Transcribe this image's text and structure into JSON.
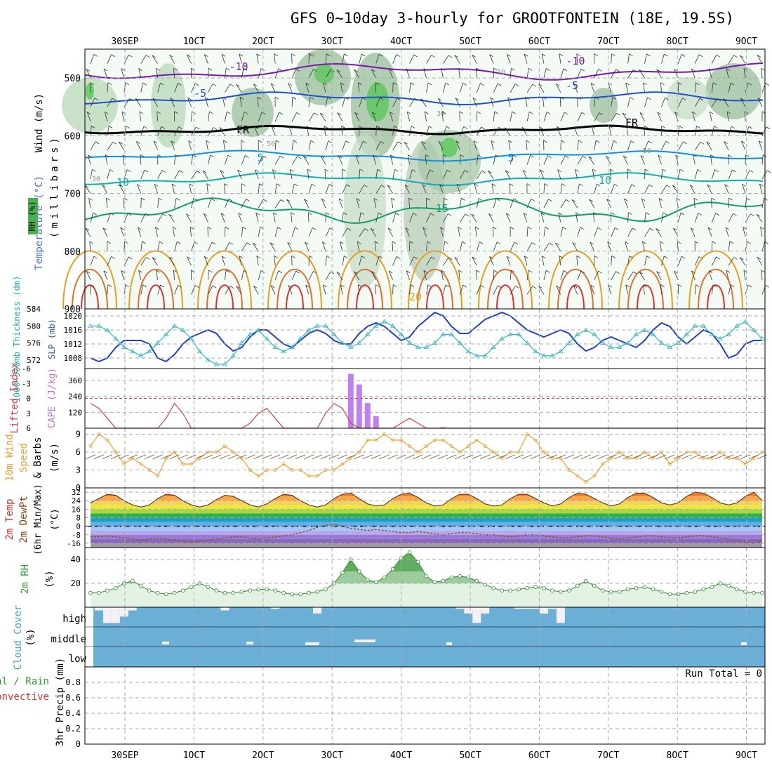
{
  "title": "GFS 0~10day 3-hourly for GROOTFONTEIN (18E, 19.5S)",
  "dates": [
    "30SEP",
    "1OCT",
    "2OCT",
    "3OCT",
    "4OCT",
    "5OCT",
    "6OCT",
    "7OCT",
    "8OCT",
    "9OCT"
  ],
  "colors": {
    "panel_border": "#000000",
    "grid": "#aaaaaa",
    "cloud_fill": "#6baed6",
    "rh_line": "#2e8b2e",
    "temp_purple": "#7b16b4",
    "temp_blue": "#2050d0",
    "temp_cyan": "#10b0b0",
    "temp_green": "#10a070",
    "temp_orange": "#e6a020",
    "temp_red": "#e03030",
    "wind10m": "#f0a030",
    "cape_bar": "#c080f0"
  },
  "panels": {
    "upper": {
      "labels": [
        "RH (%)",
        "Temperature (°C)",
        "Wind (m/s)"
      ],
      "axis_label": "(millibars)",
      "yticks": [
        "500",
        "600",
        "700",
        "800",
        "900"
      ],
      "contour_labels": [
        "-10",
        "-10",
        "-5",
        "-5",
        "FR",
        "FR",
        "5",
        "5",
        "10",
        "10",
        "15",
        "20",
        "30",
        "30",
        "30",
        "50",
        "50",
        "10"
      ]
    },
    "slp": {
      "left_label": "1000~500mb Thickness (dm)",
      "right_label": "SLP (mb)",
      "thick_ticks": [
        "584",
        "580",
        "576",
        "572"
      ],
      "slp_ticks": [
        "1020",
        "1016",
        "1012",
        "1008"
      ]
    },
    "cape": {
      "left_label": "Lifted Index",
      "right_label": "CAPE (J/kg)",
      "li_ticks": [
        "-6",
        "-3",
        "0",
        "3",
        "6"
      ],
      "cape_ticks": [
        "360",
        "240",
        "120"
      ]
    },
    "wind10m": {
      "labels": [
        "10m Wind",
        "Speed",
        "& Barbs"
      ],
      "unit": "(m/s)",
      "yticks": [
        "9",
        "6",
        "3",
        "0"
      ]
    },
    "temp2m": {
      "labels": [
        "2m Temp",
        "2m DewPt",
        "(6hr Min/Max)"
      ],
      "unit": "(°C)",
      "yticks": [
        "32",
        "24",
        "16",
        "8",
        "0",
        "-8",
        "-16"
      ]
    },
    "rh2m": {
      "label": "2m RH",
      "unit": "(%)",
      "yticks": [
        "40",
        "20"
      ]
    },
    "cloud": {
      "label": "Cloud Cover",
      "unit": "(%)",
      "levels": [
        "high",
        "middle",
        "low"
      ]
    },
    "precip": {
      "left_labels": [
        "Total / Rain",
        "Convective"
      ],
      "axis_label": "3hr Precip (mm)",
      "yticks": [
        "0.8",
        "0.6",
        "0.4",
        "0.2",
        "0"
      ],
      "run_total": "Run Total = 0"
    }
  },
  "chart_data": [
    {
      "type": "line",
      "name": "slp_thickness",
      "x_unit": "3-hourly steps (0-80)",
      "series": [
        {
          "name": "SLP (mb)",
          "values": [
            1008,
            1007,
            1008,
            1011,
            1013,
            1013,
            1013,
            1012,
            1008,
            1007,
            1009,
            1012,
            1014,
            1015,
            1016,
            1015,
            1012,
            1010,
            1011,
            1014,
            1016,
            1016,
            1014,
            1012,
            1011,
            1013,
            1015,
            1016,
            1015,
            1013,
            1012,
            1012,
            1015,
            1017,
            1018,
            1017,
            1015,
            1013,
            1014,
            1017,
            1019,
            1021,
            1020,
            1017,
            1015,
            1015,
            1017,
            1019,
            1020,
            1021,
            1020,
            1018,
            1016,
            1015,
            1014,
            1015,
            1016,
            1015,
            1012,
            1010,
            1011,
            1013,
            1014,
            1013,
            1012,
            1011,
            1013,
            1016,
            1018,
            1017,
            1014,
            1012,
            1014,
            1016,
            1015,
            1012,
            1008,
            1009,
            1012,
            1013,
            1013
          ]
        },
        {
          "name": "1000~500mb Thickness (dm)",
          "values": [
            580,
            580,
            579,
            577,
            575,
            574,
            573,
            574,
            576,
            578,
            580,
            579,
            577,
            574,
            572,
            571,
            571,
            573,
            576,
            578,
            579,
            577,
            575,
            574,
            575,
            577,
            579,
            580,
            580,
            578,
            576,
            575,
            576,
            578,
            580,
            581,
            580,
            578,
            576,
            575,
            575,
            576,
            578,
            578,
            576,
            574,
            573,
            573,
            575,
            577,
            578,
            578,
            576,
            574,
            573,
            573,
            574,
            576,
            578,
            579,
            578,
            576,
            575,
            575,
            576,
            578,
            579,
            578,
            576,
            575,
            576,
            578,
            580,
            580,
            578,
            577,
            578,
            580,
            581,
            579,
            577
          ]
        }
      ]
    },
    {
      "type": "bar",
      "name": "cape",
      "x_unit": "3-hourly steps",
      "bars": [
        {
          "x": 31,
          "value": 410
        },
        {
          "x": 32,
          "value": 330
        },
        {
          "x": 33,
          "value": 190
        },
        {
          "x": 34,
          "value": 90
        },
        {
          "x": 42,
          "value": 8
        }
      ],
      "lifted_index": [
        1,
        2,
        4,
        6,
        6,
        6,
        6,
        6,
        6,
        4,
        1,
        3,
        6,
        6,
        6,
        6,
        6,
        6,
        6,
        5,
        3,
        2,
        4,
        6,
        6,
        6,
        6,
        6,
        3,
        1,
        2,
        5,
        6,
        6,
        6,
        6,
        6,
        5,
        4,
        5,
        6,
        6,
        6,
        6,
        6,
        6,
        6,
        6,
        6,
        6,
        6,
        6,
        6,
        6,
        6,
        6,
        6,
        6,
        6,
        6,
        6,
        6,
        6,
        6,
        6,
        6,
        6,
        6,
        6,
        6,
        6,
        6,
        6,
        6,
        6,
        6,
        6,
        6,
        6,
        6,
        6
      ],
      "ylim_li": [
        6,
        -6
      ],
      "ylim_cape": [
        0,
        450
      ]
    },
    {
      "type": "line",
      "name": "wind10m_speed",
      "values": [
        7,
        9,
        8,
        6,
        4,
        5,
        4,
        3,
        2,
        5,
        6,
        4,
        4,
        5,
        6,
        6,
        7,
        6,
        5,
        3,
        2,
        3,
        3,
        4,
        3,
        3,
        2,
        2,
        3,
        3,
        4,
        5,
        6,
        8,
        8,
        9,
        8,
        8,
        7,
        6,
        7,
        8,
        8,
        7,
        6,
        7,
        8,
        7,
        6,
        5,
        6,
        6,
        9,
        8,
        6,
        5,
        5,
        3,
        2,
        1,
        2,
        4,
        5,
        6,
        5,
        5,
        6,
        5,
        6,
        4,
        5,
        6,
        6,
        5,
        5,
        6,
        5,
        5,
        4,
        5,
        6
      ],
      "ylim": [
        0,
        10
      ]
    },
    {
      "type": "area",
      "name": "temp2m",
      "temp": [
        22,
        26,
        30,
        29,
        24,
        20,
        18,
        20,
        26,
        30,
        29,
        24,
        20,
        18,
        20,
        25,
        29,
        28,
        24,
        20,
        18,
        21,
        26,
        30,
        29,
        24,
        20,
        18,
        20,
        26,
        30,
        31,
        26,
        21,
        19,
        20,
        26,
        30,
        31,
        27,
        22,
        19,
        20,
        26,
        30,
        30,
        26,
        21,
        19,
        20,
        26,
        30,
        30,
        26,
        22,
        19,
        21,
        27,
        31,
        30,
        26,
        22,
        19,
        21,
        27,
        31,
        31,
        27,
        22,
        20,
        22,
        28,
        32,
        31,
        27,
        22,
        20,
        22,
        28,
        32,
        24
      ],
      "dewpt": [
        -10,
        -10,
        -9,
        -10,
        -11,
        -12,
        -13,
        -12,
        -11,
        -12,
        -13,
        -14,
        -15,
        -14,
        -13,
        -12,
        -11,
        -10,
        -10,
        -11,
        -12,
        -11,
        -10,
        -9,
        -8,
        -6,
        -4,
        -1,
        1,
        2,
        0,
        -2,
        -3,
        -4,
        -3,
        -4,
        -5,
        -6,
        -6,
        -5,
        -6,
        -7,
        -8,
        -7,
        -6,
        -6,
        -7,
        -8,
        -8,
        -9,
        -10,
        -9,
        -8,
        -8,
        -9,
        -10,
        -11,
        -11,
        -10,
        -9,
        -9,
        -10,
        -11,
        -12,
        -11,
        -10,
        -9,
        -9,
        -10,
        -11,
        -11,
        -10,
        -9,
        -9,
        -10,
        -11,
        -12,
        -13,
        -15,
        -16,
        -14
      ],
      "ylim": [
        -20,
        36
      ]
    },
    {
      "type": "area",
      "name": "rh2m",
      "values": [
        12,
        12,
        14,
        16,
        20,
        22,
        18,
        14,
        12,
        11,
        12,
        14,
        17,
        20,
        17,
        14,
        12,
        12,
        13,
        14,
        15,
        15,
        14,
        12,
        11,
        11,
        12,
        13,
        15,
        20,
        29,
        40,
        30,
        23,
        21,
        25,
        32,
        41,
        46,
        38,
        26,
        21,
        22,
        25,
        26,
        25,
        22,
        19,
        16,
        14,
        14,
        15,
        16,
        17,
        16,
        14,
        13,
        14,
        18,
        22,
        18,
        14,
        13,
        13,
        15,
        16,
        17,
        15,
        13,
        11,
        11,
        12,
        13,
        15,
        17,
        20,
        18,
        15,
        13,
        12,
        12
      ],
      "ylim": [
        0,
        50
      ]
    },
    {
      "type": "bar",
      "name": "cloud_cover_high",
      "values": [
        0,
        10,
        50,
        50,
        30,
        10,
        0,
        0,
        0,
        0,
        0,
        0,
        0,
        0,
        0,
        0,
        10,
        0,
        0,
        0,
        0,
        0,
        5,
        0,
        0,
        0,
        0,
        20,
        0,
        0,
        0,
        0,
        0,
        0,
        0,
        0,
        0,
        0,
        0,
        0,
        0,
        0,
        0,
        0,
        5,
        20,
        50,
        20,
        0,
        0,
        0,
        5,
        5,
        5,
        20,
        5,
        50,
        0,
        0,
        0,
        0,
        0,
        0,
        0,
        0,
        0,
        0,
        0,
        0,
        0,
        0,
        0,
        0,
        0,
        0,
        0,
        0,
        0,
        0,
        0,
        0
      ]
    },
    {
      "type": "bar",
      "name": "precip_3hr",
      "values": [],
      "ylim": [
        0,
        1
      ]
    }
  ]
}
